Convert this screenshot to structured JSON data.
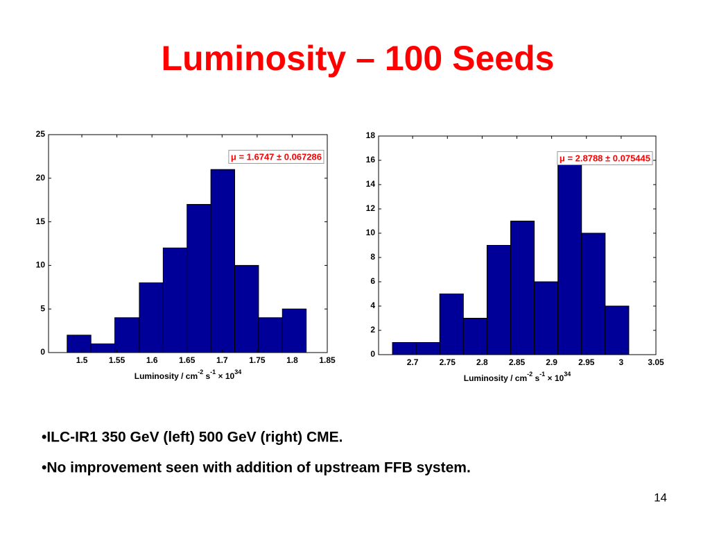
{
  "title": "Luminosity – 100 Seeds",
  "chart_data": [
    {
      "type": "histogram",
      "bins": [
        1.479,
        1.513,
        1.547,
        1.582,
        1.616,
        1.65,
        1.684,
        1.718,
        1.752,
        1.786,
        1.82
      ],
      "counts": [
        2,
        1,
        4,
        8,
        12,
        17,
        21,
        10,
        4,
        5
      ],
      "color": "#000099",
      "xlim": [
        1.4525,
        1.85
      ],
      "xticks": [
        1.5,
        1.55,
        1.6,
        1.65,
        1.7,
        1.75,
        1.8,
        1.85
      ],
      "ylim": [
        0,
        25
      ],
      "yticks": [
        0,
        5,
        10,
        15,
        20,
        25
      ],
      "annotation": "μ = 1.6747 ± 0.067286",
      "x_label": [
        "Luminosity / cm",
        "-2",
        " s",
        "-1",
        " × 10",
        "34"
      ]
    },
    {
      "type": "histogram",
      "bins": [
        2.671,
        2.705,
        2.739,
        2.773,
        2.807,
        2.841,
        2.875,
        2.909,
        2.943,
        2.977,
        3.011
      ],
      "counts": [
        1,
        1,
        5,
        3,
        9,
        11,
        6,
        16,
        10,
        4
      ],
      "color": "#000099",
      "xlim": [
        2.651,
        3.05
      ],
      "xticks": [
        2.7,
        2.75,
        2.8,
        2.85,
        2.9,
        2.95,
        3,
        3.05
      ],
      "ylim": [
        0,
        18
      ],
      "yticks": [
        0,
        2,
        4,
        6,
        8,
        10,
        12,
        14,
        16,
        18
      ],
      "annotation": "μ = 2.8788 ± 0.075445",
      "x_label": [
        "Luminosity / cm",
        "-2",
        " s",
        "-1",
        " × 10",
        "34"
      ]
    }
  ],
  "bullets": [
    "•ILC-IR1 350 GeV (left) 500 GeV (right) CME.",
    "•No improvement seen with addition of upstream FFB system."
  ],
  "page_number": "14"
}
